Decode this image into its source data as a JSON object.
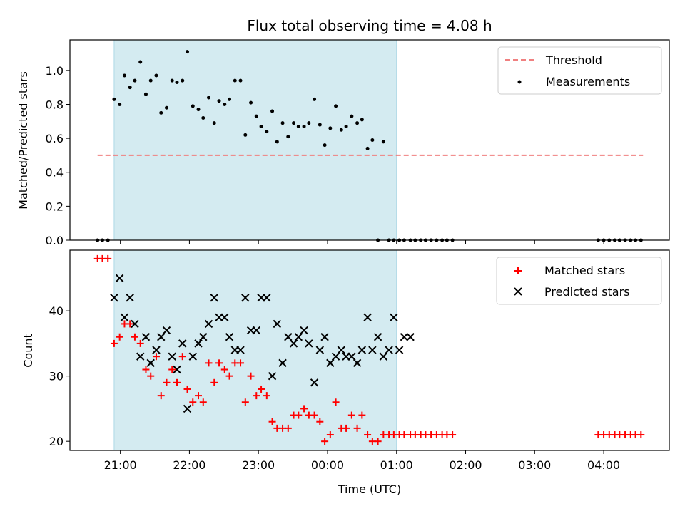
{
  "figure": {
    "title": "Flux total observing time = 4.08 h",
    "xlabel": "Time (UTC)",
    "x_ticks": [
      "21:00",
      "22:00",
      "23:00",
      "00:00",
      "01:00",
      "02:00",
      "03:00",
      "04:00"
    ],
    "x_range_hours": [
      20.27,
      28.95
    ],
    "shaded_region_hours": [
      20.91,
      25.0
    ],
    "shade_color": "#d4ebf1"
  },
  "chart_data": [
    {
      "type": "scatter",
      "ylabel": "Matched/Predicted stars",
      "ylim": [
        0,
        1.18
      ],
      "y_ticks": [
        "0.0",
        "0.2",
        "0.4",
        "0.6",
        "0.8",
        "1.0"
      ],
      "threshold": {
        "name": "Threshold",
        "value": 0.5,
        "x_start": 20.67,
        "x_end": 28.57,
        "color": "#f08080"
      },
      "series": [
        {
          "name": "Measurements",
          "color": "#000000",
          "x": [
            20.67,
            20.74,
            20.82,
            20.91,
            20.99,
            21.06,
            21.14,
            21.21,
            21.29,
            21.37,
            21.44,
            21.52,
            21.59,
            21.67,
            21.75,
            21.82,
            21.9,
            21.97,
            22.05,
            22.13,
            22.2,
            22.28,
            22.36,
            22.43,
            22.51,
            22.58,
            22.66,
            22.74,
            22.81,
            22.89,
            22.97,
            23.04,
            23.12,
            23.2,
            23.27,
            23.35,
            23.43,
            23.51,
            23.58,
            23.66,
            23.73,
            23.81,
            23.89,
            23.96,
            24.04,
            24.12,
            24.2,
            24.27,
            24.35,
            24.43,
            24.5,
            24.58,
            24.65,
            24.73,
            24.81,
            24.89,
            24.96,
            25.04,
            25.11,
            25.2,
            25.27,
            25.35,
            25.42,
            25.5,
            25.58,
            25.66,
            25.73,
            25.81,
            27.92,
            28.0,
            28.08,
            28.16,
            28.23,
            28.31,
            28.39,
            28.46,
            28.54
          ],
          "y": [
            0,
            0,
            0,
            0.83,
            0.8,
            0.97,
            0.9,
            0.94,
            1.05,
            0.86,
            0.94,
            0.97,
            0.75,
            0.78,
            0.94,
            0.93,
            0.94,
            1.11,
            0.79,
            0.77,
            0.72,
            0.84,
            0.69,
            0.82,
            0.8,
            0.83,
            0.94,
            0.94,
            0.62,
            0.81,
            0.73,
            0.67,
            0.64,
            0.76,
            0.58,
            0.69,
            0.61,
            0.69,
            0.67,
            0.67,
            0.69,
            0.83,
            0.68,
            0.56,
            0.66,
            0.79,
            0.65,
            0.67,
            0.73,
            0.69,
            0.71,
            0.54,
            0.59,
            0,
            0.58,
            0,
            0,
            0,
            0,
            0,
            0,
            0,
            0,
            0,
            0,
            0,
            0,
            0,
            0,
            0,
            0,
            0,
            0,
            0,
            0,
            0,
            0
          ]
        }
      ]
    },
    {
      "type": "scatter",
      "ylabel": "Count",
      "ylim": [
        18.6,
        49.3
      ],
      "y_ticks": [
        "20",
        "30",
        "40"
      ],
      "series": [
        {
          "name": "Matched stars",
          "marker": "plus",
          "color": "#ff0000",
          "x": [
            20.67,
            20.74,
            20.82,
            20.91,
            20.99,
            21.06,
            21.14,
            21.21,
            21.29,
            21.37,
            21.44,
            21.52,
            21.59,
            21.67,
            21.75,
            21.82,
            21.9,
            21.97,
            22.05,
            22.13,
            22.2,
            22.28,
            22.36,
            22.43,
            22.51,
            22.58,
            22.66,
            22.74,
            22.81,
            22.89,
            22.97,
            23.04,
            23.12,
            23.2,
            23.27,
            23.35,
            23.43,
            23.51,
            23.58,
            23.66,
            23.73,
            23.81,
            23.89,
            23.96,
            24.04,
            24.12,
            24.2,
            24.27,
            24.35,
            24.43,
            24.5,
            24.58,
            24.65,
            24.73,
            24.81,
            24.89,
            24.96,
            25.04,
            25.11,
            25.2,
            25.27,
            25.35,
            25.42,
            25.5,
            25.58,
            25.66,
            25.73,
            25.81,
            27.92,
            28.0,
            28.08,
            28.16,
            28.23,
            28.31,
            28.39,
            28.46,
            28.54
          ],
          "y": [
            48,
            48,
            48,
            35,
            36,
            38,
            38,
            36,
            35,
            31,
            30,
            33,
            27,
            29,
            31,
            29,
            33,
            28,
            26,
            27,
            26,
            32,
            29,
            32,
            31,
            30,
            32,
            32,
            26,
            30,
            27,
            28,
            27,
            23,
            22,
            22,
            22,
            24,
            24,
            25,
            24,
            24,
            23,
            20,
            21,
            26,
            22,
            22,
            24,
            22,
            24,
            21,
            20,
            20,
            21,
            21,
            21,
            21,
            21,
            21,
            21,
            21,
            21,
            21,
            21,
            21,
            21,
            21,
            21,
            21,
            21,
            21,
            21,
            21,
            21,
            21,
            21
          ]
        },
        {
          "name": "Predicted stars",
          "marker": "x",
          "color": "#000000",
          "x": [
            20.91,
            20.99,
            21.06,
            21.14,
            21.21,
            21.29,
            21.37,
            21.44,
            21.52,
            21.59,
            21.67,
            21.75,
            21.82,
            21.9,
            21.97,
            22.05,
            22.13,
            22.2,
            22.28,
            22.36,
            22.43,
            22.51,
            22.58,
            22.66,
            22.74,
            22.81,
            22.89,
            22.97,
            23.04,
            23.12,
            23.2,
            23.27,
            23.35,
            23.43,
            23.51,
            23.58,
            23.66,
            23.73,
            23.81,
            23.89,
            23.96,
            24.04,
            24.12,
            24.2,
            24.27,
            24.35,
            24.43,
            24.5,
            24.58,
            24.65,
            24.73,
            24.81,
            24.89,
            24.96,
            25.04,
            25.11,
            25.2
          ],
          "y": [
            42,
            45,
            39,
            42,
            38,
            33,
            36,
            32,
            34,
            36,
            37,
            33,
            31,
            35,
            25,
            33,
            35,
            36,
            38,
            42,
            39,
            39,
            36,
            34,
            34,
            42,
            37,
            37,
            42,
            42,
            30,
            38,
            32,
            36,
            35,
            36,
            37,
            35,
            29,
            34,
            36,
            32,
            33,
            34,
            33,
            33,
            32,
            34,
            39,
            34,
            36,
            33,
            34,
            39,
            34,
            36,
            36
          ]
        }
      ]
    }
  ]
}
